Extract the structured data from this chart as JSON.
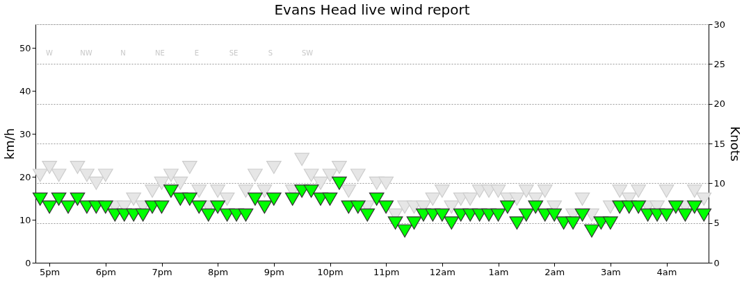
{
  "chart_data": {
    "type": "scatter",
    "title": "Evans Head live wind report",
    "ylabel": "km/h",
    "y2label": "Knots",
    "categories": [
      null,
      "5pm",
      null,
      null,
      null,
      null,
      null,
      "6pm",
      null,
      null,
      null,
      null,
      null,
      "7pm",
      null,
      null,
      null,
      null,
      null,
      "8pm",
      null,
      null,
      null,
      null,
      null,
      "9pm",
      null,
      null,
      null,
      null,
      null,
      "10pm",
      null,
      null,
      null,
      null,
      null,
      "11pm",
      null,
      null,
      null,
      null,
      null,
      "12am",
      null,
      null,
      null,
      null,
      null,
      "1am",
      null,
      null,
      null,
      null,
      null,
      "2am",
      null,
      null,
      null,
      null,
      null,
      "3am",
      null,
      null,
      null,
      null,
      null,
      "4am",
      null,
      null,
      null,
      null
    ],
    "series": [
      {
        "color": "#e6e6e6",
        "axis": "y2",
        "values": [
          11,
          12,
          11,
          null,
          12,
          11,
          10,
          11,
          7,
          7,
          8,
          7,
          9,
          10,
          11,
          10,
          12,
          9,
          7,
          9,
          8,
          null,
          9,
          11,
          9,
          12,
          null,
          9,
          13,
          11,
          10,
          11,
          12,
          9,
          11,
          7,
          10,
          10,
          6,
          7,
          7,
          7,
          8,
          9,
          7,
          8,
          8,
          9,
          9,
          9,
          8,
          8,
          9,
          8,
          9,
          7,
          null,
          6,
          8,
          6,
          null,
          7,
          9,
          8,
          9,
          7,
          7,
          9,
          null,
          7,
          9,
          8
        ]
      },
      {
        "color": "#00ff00",
        "axis": "y2",
        "values": [
          8,
          7,
          8,
          7,
          8,
          7,
          7,
          7,
          6,
          6,
          6,
          6,
          7,
          7,
          9,
          8,
          8,
          7,
          6,
          7,
          6,
          6,
          6,
          8,
          7,
          8,
          null,
          8,
          9,
          9,
          8,
          8,
          10,
          7,
          7,
          6,
          8,
          7,
          5,
          4,
          5,
          6,
          6,
          6,
          5,
          6,
          6,
          6,
          6,
          6,
          7,
          5,
          6,
          7,
          6,
          6,
          5,
          5,
          6,
          4,
          5,
          5,
          7,
          7,
          7,
          6,
          6,
          6,
          7,
          6,
          7,
          6
        ]
      }
    ],
    "ylim": [
      0,
      55.56
    ],
    "yticks": [
      0,
      10,
      20,
      30,
      40,
      50
    ],
    "y2lim": [
      0,
      30
    ],
    "y2ticks": [
      0,
      5,
      10,
      15,
      20,
      25,
      30
    ],
    "grid": "y2",
    "marker": "triangle",
    "annotations": [
      "W",
      "NW",
      "N",
      "NE",
      "E",
      "SE",
      "S",
      "SW"
    ]
  }
}
